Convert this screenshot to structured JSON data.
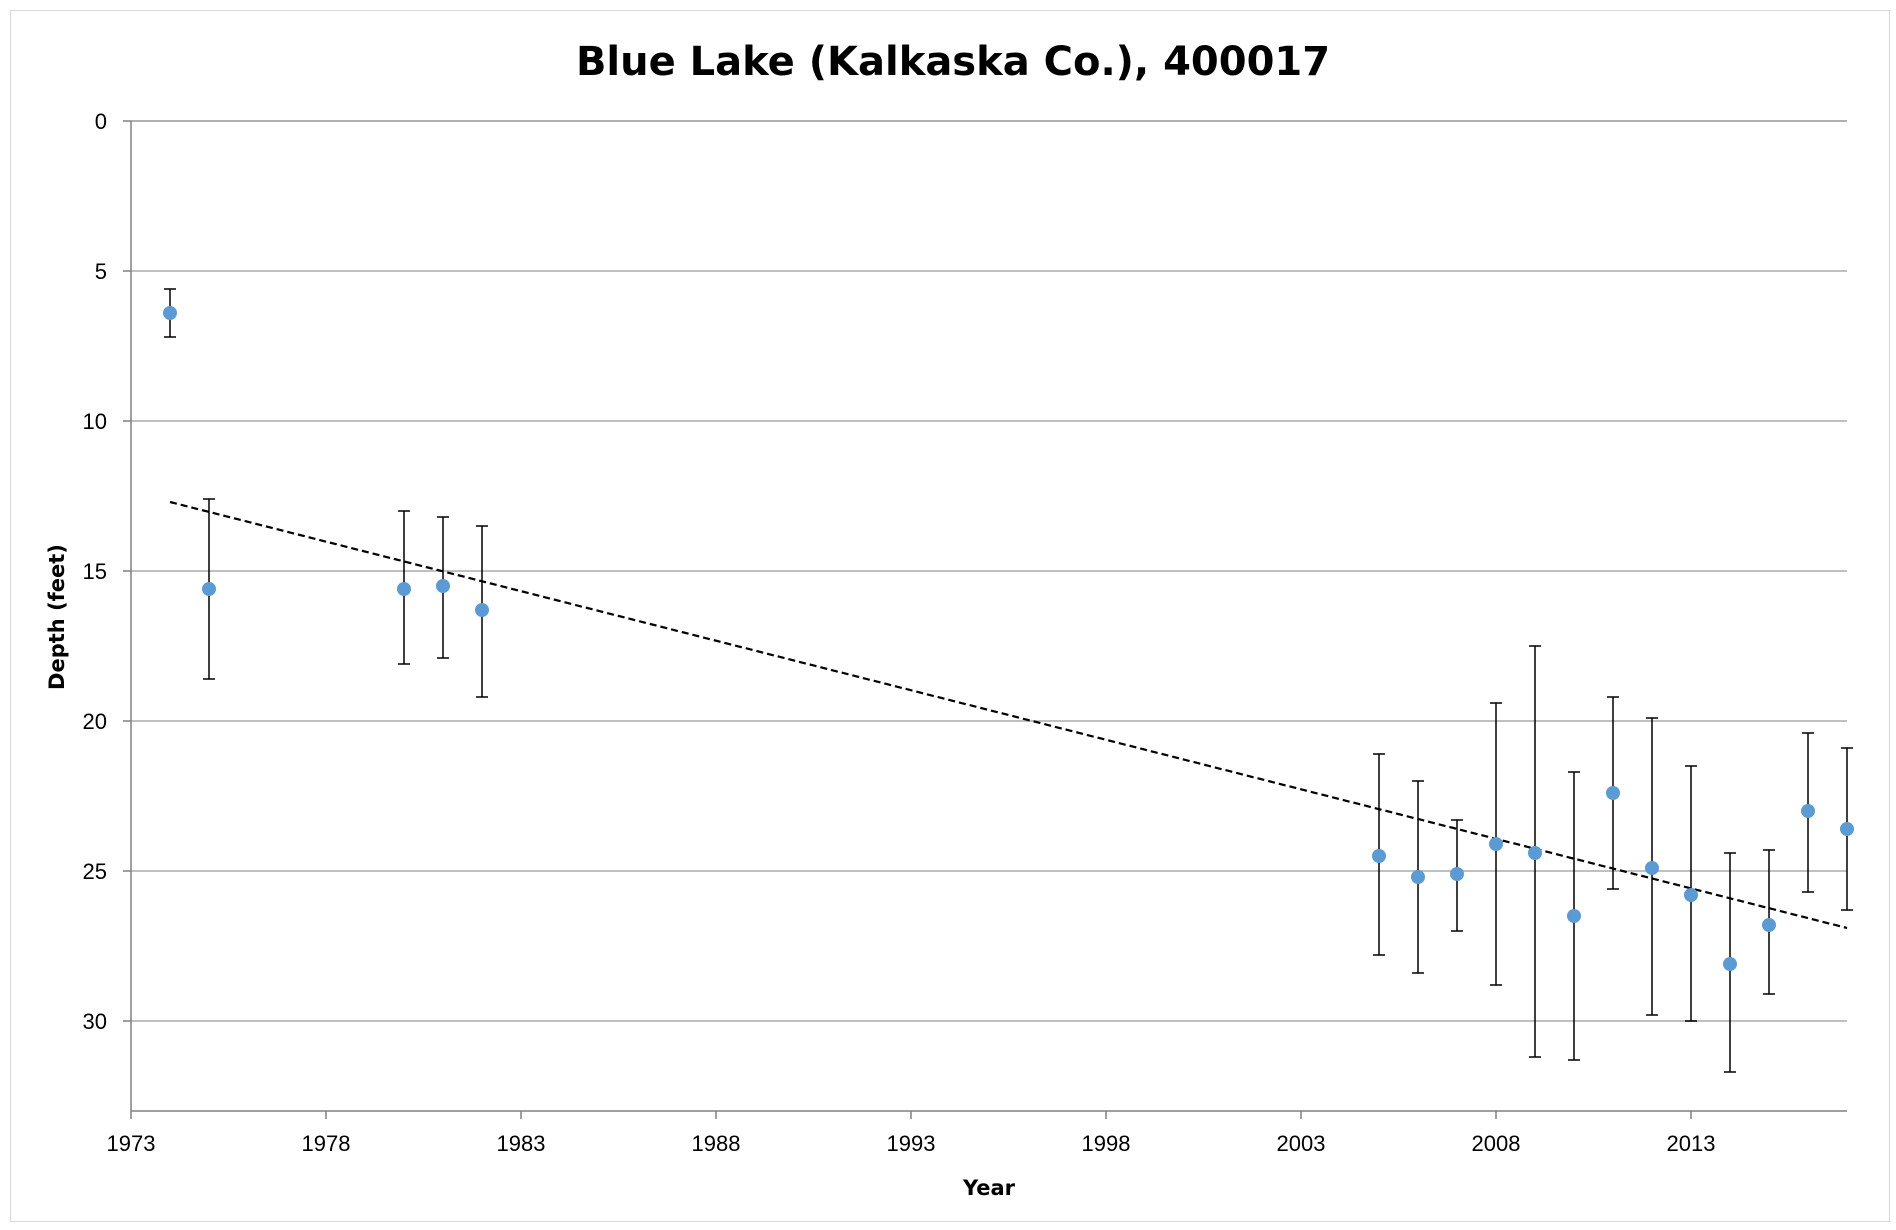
{
  "chart_data": {
    "type": "scatter",
    "title": "Blue Lake (Kalkaska Co.), 400017",
    "xlabel": "Year",
    "ylabel": "Depth (feet)",
    "xlim": [
      1973,
      2017
    ],
    "ylim": [
      0,
      33
    ],
    "y_inverted": true,
    "x_ticks": [
      1973,
      1978,
      1983,
      1988,
      1993,
      1998,
      2003,
      2008,
      2013
    ],
    "y_ticks": [
      0,
      5,
      10,
      15,
      20,
      25,
      30
    ],
    "grid": "horizontal",
    "legend": "none",
    "marker_color": "#5b9bd5",
    "errorbar_color": "#000000",
    "trendline_color": "#000000",
    "gridline_color": "#c0c0c0",
    "points": [
      {
        "x": 1974,
        "y": 6.4,
        "low": 5.6,
        "high": 7.2
      },
      {
        "x": 1975,
        "y": 15.6,
        "low": 12.6,
        "high": 18.6
      },
      {
        "x": 1980,
        "y": 15.6,
        "low": 13.0,
        "high": 18.1
      },
      {
        "x": 1981,
        "y": 15.5,
        "low": 13.2,
        "high": 17.9
      },
      {
        "x": 1982,
        "y": 16.3,
        "low": 13.5,
        "high": 19.2
      },
      {
        "x": 2005,
        "y": 24.5,
        "low": 21.1,
        "high": 27.8
      },
      {
        "x": 2006,
        "y": 25.2,
        "low": 22.0,
        "high": 28.4
      },
      {
        "x": 2007,
        "y": 25.1,
        "low": 23.3,
        "high": 27.0
      },
      {
        "x": 2008,
        "y": 24.1,
        "low": 19.4,
        "high": 28.8
      },
      {
        "x": 2009,
        "y": 24.4,
        "low": 17.5,
        "high": 31.2
      },
      {
        "x": 2010,
        "y": 26.5,
        "low": 21.7,
        "high": 31.3
      },
      {
        "x": 2011,
        "y": 22.4,
        "low": 19.2,
        "high": 25.6
      },
      {
        "x": 2012,
        "y": 24.9,
        "low": 19.9,
        "high": 29.8
      },
      {
        "x": 2013,
        "y": 25.8,
        "low": 21.5,
        "high": 30.0
      },
      {
        "x": 2014,
        "y": 28.1,
        "low": 24.4,
        "high": 31.7
      },
      {
        "x": 2015,
        "y": 26.8,
        "low": 24.3,
        "high": 29.1
      },
      {
        "x": 2016,
        "y": 23.0,
        "low": 20.4,
        "high": 25.7
      },
      {
        "x": 2017,
        "y": 23.6,
        "low": 20.9,
        "high": 26.3
      }
    ],
    "trendline": {
      "x": [
        1974,
        2017
      ],
      "y": [
        12.7,
        26.9
      ]
    }
  }
}
